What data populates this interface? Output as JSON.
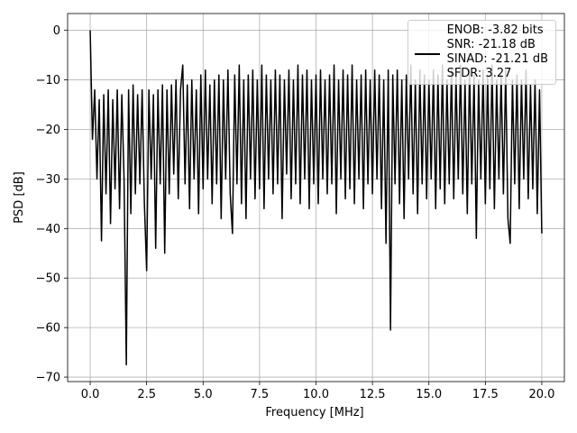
{
  "chart_data": {
    "type": "line",
    "xlabel": "Frequency [MHz]",
    "ylabel": "PSD [dB]",
    "x": [
      0,
      0.1,
      0.2,
      0.3,
      0.4,
      0.5,
      0.6,
      0.7,
      0.8,
      0.9,
      1,
      1.1,
      1.2,
      1.3,
      1.4,
      1.5,
      1.6,
      1.7,
      1.8,
      1.9,
      2,
      2.1,
      2.2,
      2.3,
      2.4,
      2.5,
      2.6,
      2.7,
      2.8,
      2.9,
      3,
      3.1,
      3.2,
      3.3,
      3.4,
      3.5,
      3.6,
      3.7,
      3.8,
      3.9,
      4,
      4.1,
      4.2,
      4.3,
      4.4,
      4.5,
      4.6,
      4.7,
      4.8,
      4.9,
      5,
      5.1,
      5.2,
      5.3,
      5.4,
      5.5,
      5.6,
      5.7,
      5.8,
      5.9,
      6,
      6.1,
      6.2,
      6.3,
      6.4,
      6.5,
      6.6,
      6.7,
      6.8,
      6.9,
      7,
      7.1,
      7.2,
      7.3,
      7.4,
      7.5,
      7.6,
      7.7,
      7.8,
      7.9,
      8,
      8.1,
      8.2,
      8.3,
      8.4,
      8.5,
      8.6,
      8.7,
      8.8,
      8.9,
      9,
      9.1,
      9.2,
      9.3,
      9.4,
      9.5,
      9.6,
      9.7,
      9.8,
      9.9,
      10,
      10.1,
      10.2,
      10.3,
      10.4,
      10.5,
      10.6,
      10.7,
      10.8,
      10.9,
      11,
      11.1,
      11.2,
      11.3,
      11.4,
      11.5,
      11.6,
      11.7,
      11.8,
      11.9,
      12,
      12.1,
      12.2,
      12.3,
      12.4,
      12.5,
      12.6,
      12.7,
      12.8,
      12.9,
      13,
      13.1,
      13.2,
      13.3,
      13.4,
      13.5,
      13.6,
      13.7,
      13.8,
      13.9,
      14,
      14.1,
      14.2,
      14.3,
      14.4,
      14.5,
      14.6,
      14.7,
      14.8,
      14.9,
      15,
      15.1,
      15.2,
      15.3,
      15.4,
      15.5,
      15.6,
      15.7,
      15.8,
      15.9,
      16,
      16.1,
      16.2,
      16.3,
      16.4,
      16.5,
      16.6,
      16.7,
      16.8,
      16.9,
      17,
      17.1,
      17.2,
      17.3,
      17.4,
      17.5,
      17.6,
      17.7,
      17.8,
      17.9,
      18,
      18.1,
      18.2,
      18.3,
      18.4,
      18.5,
      18.6,
      18.7,
      18.8,
      18.9,
      19,
      19.1,
      19.2,
      19.3,
      19.4,
      19.5,
      19.6,
      19.7,
      19.8,
      19.9,
      20
    ],
    "series": [
      {
        "name": "ENOB: -3.82 bits\nSNR: -21.18 dB\nSINAD: -21.21 dB\nSFDR: 3.27",
        "color": "#000000",
        "values": [
          0,
          -22,
          -12,
          -30,
          -14,
          -42.5,
          -13,
          -33,
          -12,
          -39,
          -14,
          -32,
          -12,
          -36,
          -13,
          -30,
          -67.5,
          -12,
          -37,
          -11,
          -33,
          -13,
          -31,
          -12,
          -35,
          -48.5,
          -12,
          -30,
          -13,
          -44,
          -12,
          -31,
          -11,
          -45,
          -12,
          -33,
          -11,
          -29,
          -10,
          -34,
          -12,
          -7,
          -31,
          -11,
          -36,
          -10,
          -30,
          -12,
          -37,
          -9,
          -32,
          -8,
          -30,
          -11,
          -35,
          -10,
          -31,
          -9,
          -38,
          -10,
          -30,
          -8,
          -33,
          -41,
          -9,
          -31,
          -7,
          -35,
          -10,
          -38,
          -9,
          -30,
          -8,
          -34,
          -10,
          -32,
          -7,
          -36,
          -9,
          -30,
          -10,
          -33,
          -8,
          -31,
          -9,
          -38,
          -10,
          -29,
          -8,
          -34,
          -10,
          -31,
          -7,
          -35,
          -9,
          -30,
          -8,
          -36,
          -10,
          -31,
          -9,
          -35,
          -8,
          -30,
          -10,
          -33,
          -9,
          -31,
          -7,
          -37,
          -10,
          -30,
          -8,
          -34,
          -9,
          -32,
          -7,
          -35,
          -10,
          -30,
          -9,
          -36,
          -8,
          -31,
          -10,
          -33,
          -8,
          -30,
          -9,
          -36,
          -10,
          -43,
          -8,
          -60.5,
          -9,
          -31,
          -8,
          -35,
          -10,
          -38,
          -9,
          -30,
          -7,
          -33,
          -10,
          -37,
          -8,
          -31,
          -9,
          -34,
          -10,
          -30,
          -8,
          -36,
          -9,
          -32,
          -7,
          -35,
          -10,
          -31,
          -8,
          -34,
          -9,
          -30,
          -7,
          -33,
          -10,
          -37,
          -8,
          -31,
          -9,
          -42,
          -10,
          -30,
          -8,
          -35,
          -9,
          -32,
          -7,
          -36,
          -10,
          -30,
          -9,
          -33,
          -8,
          -38,
          -43,
          -10,
          -31,
          -9,
          -36,
          -10,
          -30,
          -8,
          -34,
          -11,
          -32,
          -10,
          -37,
          -12,
          -41
        ]
      }
    ],
    "xlim": [
      -1,
      21
    ],
    "ylim": [
      -70.9,
      3.4
    ],
    "xticks": [
      {
        "value": 0,
        "label": "0.0"
      },
      2.5,
      {
        "value": 5,
        "label": "5.0"
      },
      7.5,
      {
        "value": 10,
        "label": "10.0"
      },
      12.5,
      {
        "value": 15,
        "label": "15.0"
      },
      17.5,
      {
        "value": 20,
        "label": "20.0"
      }
    ],
    "yticks": [
      0,
      {
        "value": -10,
        "label": "−10"
      },
      {
        "value": -20,
        "label": "−20"
      },
      {
        "value": -30,
        "label": "−30"
      },
      {
        "value": -40,
        "label": "−40"
      },
      {
        "value": -50,
        "label": "−50"
      },
      {
        "value": -60,
        "label": "−60"
      },
      {
        "value": -70,
        "label": "−70"
      }
    ],
    "grid": true,
    "legend": "upper right"
  }
}
